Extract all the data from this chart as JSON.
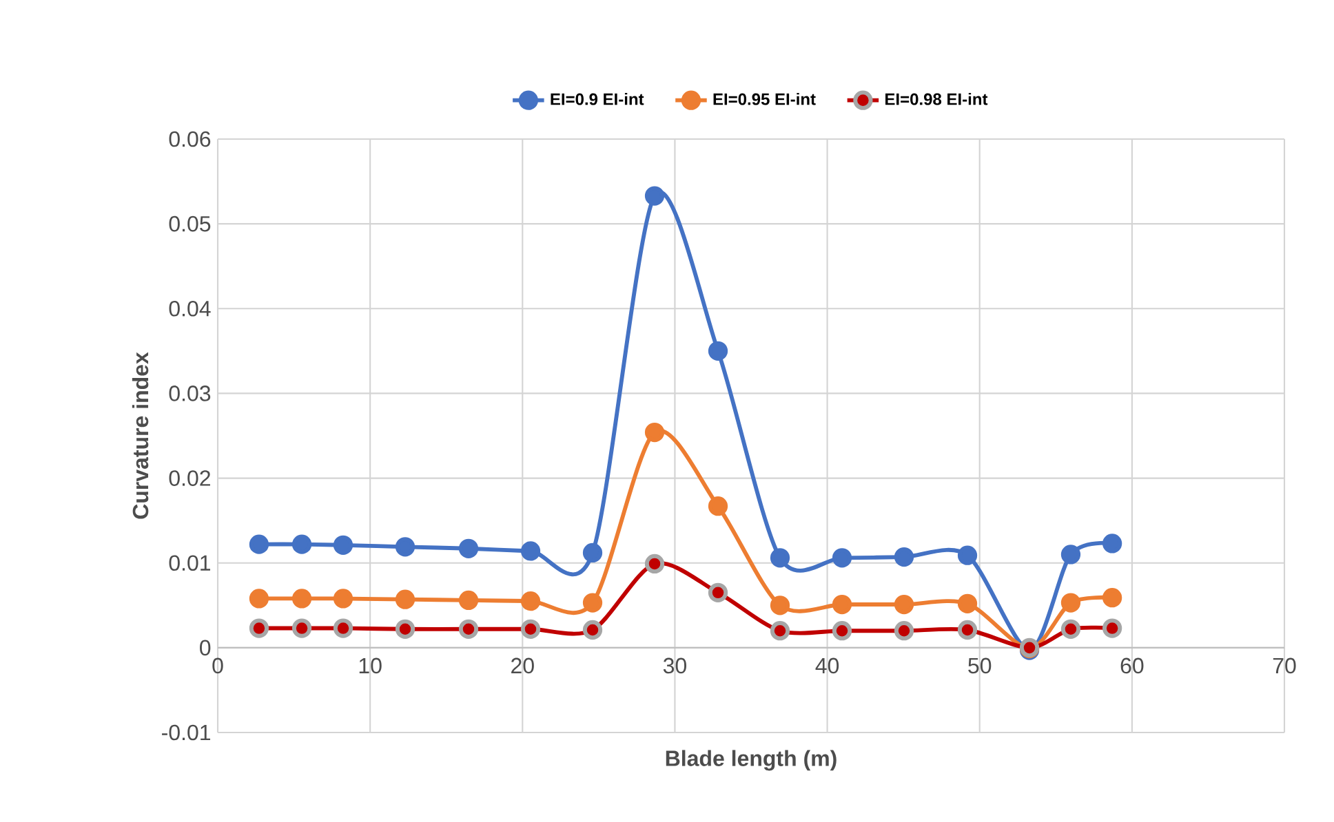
{
  "chart_data": {
    "type": "line",
    "xlabel": "Blade length (m)",
    "ylabel": "Curvature index",
    "x": [
      2.71,
      5.52,
      8.23,
      12.3,
      16.46,
      20.53,
      24.6,
      28.67,
      32.83,
      36.9,
      40.97,
      45.04,
      49.2,
      53.27,
      55.98,
      58.7
    ],
    "series": [
      {
        "name": "EI=0.9 EI-int",
        "color": "#4472c4",
        "values": [
          0.0122,
          0.0122,
          0.0121,
          0.0119,
          0.0117,
          0.0114,
          0.0112,
          0.0533,
          0.035,
          0.0106,
          0.0106,
          0.0107,
          0.0109,
          -0.0003,
          0.011,
          0.0123
        ]
      },
      {
        "name": "EI=0.95 EI-int",
        "color": "#ed7d31",
        "values": [
          0.0058,
          0.0058,
          0.0058,
          0.0057,
          0.0056,
          0.0055,
          0.0053,
          0.0254,
          0.0167,
          0.005,
          0.0051,
          0.0051,
          0.0052,
          -0.0001,
          0.0053,
          0.0059
        ]
      },
      {
        "name": "EI=0.98 EI-int",
        "color": "#c00000",
        "values": [
          0.0023,
          0.0023,
          0.0023,
          0.0022,
          0.0022,
          0.0022,
          0.0021,
          0.0099,
          0.0065,
          0.002,
          0.002,
          0.002,
          0.0021,
          0.0,
          0.0022,
          0.0023
        ]
      }
    ],
    "xlim": [
      0,
      70
    ],
    "ylim": [
      -0.01,
      0.06
    ],
    "xticks": [
      0,
      10,
      20,
      30,
      40,
      50,
      60,
      70
    ],
    "yticks": [
      -0.01,
      0,
      0.01,
      0.02,
      0.03,
      0.04,
      0.05,
      0.06
    ],
    "grid": true,
    "legend": "top",
    "marker": "circle",
    "line_style": "solid"
  }
}
